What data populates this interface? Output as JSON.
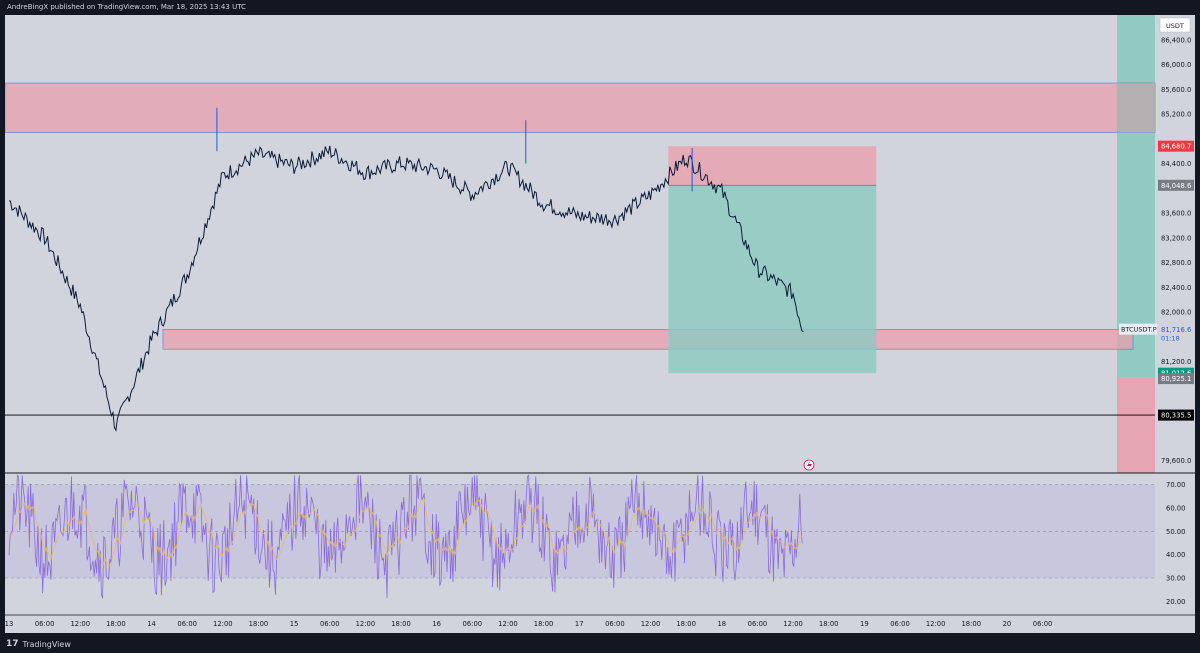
{
  "header": {
    "published": "AndreBingX published on TradingView.com, Mar 18, 2025 13:43 UTC"
  },
  "footer": {
    "logo": "17",
    "brand": "TradingView"
  },
  "colors": {
    "background": "#d1d4dc",
    "supply_zone": "#e8a0ad",
    "target_zone": "#8cc9c0",
    "price_line": "#0b1a3a",
    "rsi_line": "#8a6cd6",
    "rsi_ma": "#e8b86d",
    "zone_border": "#4a7bd9"
  },
  "chart_data": [
    {
      "type": "line",
      "symbol": "BTCUSDT.P",
      "countdown": "01:18",
      "currency": "USDT",
      "ylim": [
        79400,
        86800
      ],
      "y_ticks": [
        "86,400.0",
        "86,000.0",
        "85,600.0",
        "85,200.0",
        "84,400.0",
        "83,600.0",
        "83,200.0",
        "82,800.0",
        "82,400.0",
        "82,000.0",
        "81,200.0",
        "79,600.0"
      ],
      "x_ticks": [
        "13",
        "06:00",
        "12:00",
        "18:00",
        "14",
        "06:00",
        "12:00",
        "18:00",
        "15",
        "06:00",
        "12:00",
        "18:00",
        "16",
        "06:00",
        "12:00",
        "18:00",
        "17",
        "06:00",
        "12:00",
        "18:00",
        "18",
        "06:00",
        "12:00",
        "18:00",
        "19",
        "06:00",
        "12:00",
        "18:00",
        "20",
        "06:00"
      ],
      "x": [
        "03-13 00:00",
        "03-13 06:00",
        "03-13 12:00",
        "03-13 18:00",
        "03-14 00:00",
        "03-14 06:00",
        "03-14 12:00",
        "03-14 18:00",
        "03-15 00:00",
        "03-15 06:00",
        "03-15 12:00",
        "03-15 18:00",
        "03-16 00:00",
        "03-16 06:00",
        "03-16 12:00",
        "03-16 18:00",
        "03-17 00:00",
        "03-17 06:00",
        "03-17 12:00",
        "03-17 18:00",
        "03-18 00:00",
        "03-18 06:00",
        "03-18 12:00",
        "03-18 13:43"
      ],
      "close": [
        83800,
        83200,
        82100,
        80150,
        81550,
        82600,
        84200,
        84550,
        84350,
        84600,
        84250,
        84400,
        84300,
        83900,
        84350,
        83750,
        83550,
        83500,
        83900,
        84500,
        83950,
        82700,
        82300,
        81680
      ],
      "zones": [
        {
          "name": "upper-supply",
          "low": 84900,
          "high": 85700
        },
        {
          "name": "demand",
          "low": 81400,
          "high": 81720
        }
      ],
      "horizontal_lines": [
        80335.5
      ],
      "position": {
        "entry": 84048.6,
        "stop": 84680.7,
        "target": 81012.6,
        "start": "03-17 15:00",
        "end": "03-19 02:00"
      },
      "price_labels": [
        {
          "value": "84,680.7",
          "color": "#f23645",
          "price": 84680.7
        },
        {
          "value": "84,048.6",
          "color": "#787b86",
          "price": 84048.6
        },
        {
          "value": "81,716.6",
          "color": "#d1d4dc",
          "price": 81716.6
        },
        {
          "value": "81,012.6",
          "color": "#089981",
          "price": 81012.6
        },
        {
          "value": "80,925.1",
          "color": "#787b86",
          "price": 80925.1
        },
        {
          "value": "80,335.5",
          "color": "#000000",
          "price": 80335.5
        }
      ]
    },
    {
      "type": "line",
      "name_shown": "",
      "ylim": [
        15,
        75
      ],
      "y_ticks": [
        "70.00",
        "60.00",
        "50.00",
        "40.00",
        "30.00",
        "20.00"
      ],
      "bands": {
        "upper": 70,
        "middle": 50,
        "lower": 30
      }
    }
  ]
}
